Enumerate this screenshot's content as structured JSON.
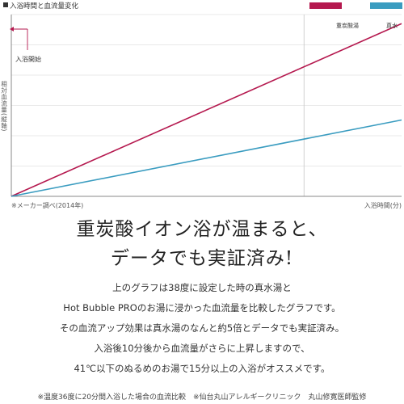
{
  "chart_data": {
    "type": "line",
    "title": "入浴時間と血流量変化",
    "ylabel": "相対血流量(縦軸)",
    "xlabel": "入浴時間(分)",
    "source_note": "※メーカー調べ(2014年)",
    "start_annotation": "入浴開始",
    "xlim": [
      0,
      20
    ],
    "ylim": [
      0,
      10
    ],
    "x_marker": 15,
    "grid": true,
    "legend_position": "top-right",
    "series": [
      {
        "name": "重炭酸湯",
        "color": "#b5194f",
        "points": [
          [
            0,
            0
          ],
          [
            20,
            9.5
          ]
        ]
      },
      {
        "name": "真水",
        "color": "#3a9cc0",
        "points": [
          [
            0,
            0
          ],
          [
            20,
            4.2
          ]
        ]
      }
    ]
  },
  "headline": {
    "line1": "重炭酸イオン浴が温まると、",
    "line2": "データでも実証済み!"
  },
  "description": [
    "上のグラフは38度に設定した時の真水湯と",
    "Hot Bubble PROのお湯に浸かった血流量を比較したグラフです。",
    "その血流アップ効果は真水湯のなんと約5倍とデータでも実証済み。",
    "入浴後10分後から血流量がさらに上昇しますので、",
    "41℃以下のぬるめのお湯で15分以上の入浴がオススメです。"
  ],
  "footnote": "※温度36度に20分間入浴した場合の血流比較　※仙台丸山アレルギークリニック　丸山修寛医師監修"
}
